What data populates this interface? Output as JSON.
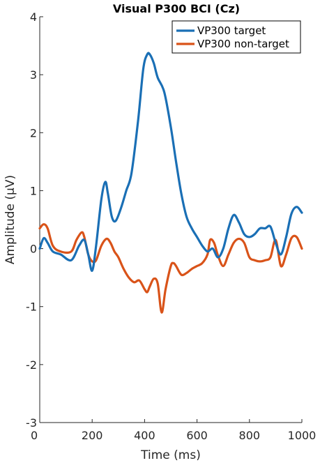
{
  "chart_data": {
    "type": "line",
    "title": "Visual P300 BCI (Cz)",
    "xlabel": "Time (ms)",
    "ylabel": "Amplitude (μV)",
    "xlim": [
      0,
      1000
    ],
    "ylim": [
      -3,
      4
    ],
    "xticks": [
      0,
      200,
      400,
      600,
      800,
      1000
    ],
    "yticks": [
      -3,
      -2,
      -1,
      0,
      1,
      2,
      3,
      4
    ],
    "grid": false,
    "legend_position": "top-right",
    "series": [
      {
        "name": "VP300 target",
        "color": "#1a6fb5",
        "x": [
          0,
          15,
          30,
          50,
          80,
          120,
          150,
          170,
          185,
          200,
          215,
          235,
          250,
          260,
          275,
          290,
          310,
          330,
          350,
          375,
          395,
          410,
          420,
          435,
          450,
          475,
          500,
          520,
          540,
          560,
          580,
          600,
          620,
          640,
          660,
          680,
          700,
          720,
          740,
          760,
          780,
          800,
          820,
          840,
          860,
          880,
          900,
          920,
          940,
          960,
          980,
          1000
        ],
        "y": [
          0.0,
          0.18,
          0.1,
          -0.05,
          -0.1,
          -0.2,
          0.05,
          0.15,
          -0.1,
          -0.38,
          0.05,
          0.85,
          1.15,
          0.95,
          0.55,
          0.48,
          0.7,
          1.0,
          1.3,
          2.2,
          3.1,
          3.35,
          3.35,
          3.2,
          2.95,
          2.7,
          2.1,
          1.5,
          0.95,
          0.55,
          0.35,
          0.2,
          0.05,
          -0.05,
          0.0,
          -0.15,
          0.0,
          0.35,
          0.58,
          0.45,
          0.25,
          0.2,
          0.25,
          0.35,
          0.35,
          0.38,
          0.1,
          -0.1,
          0.2,
          0.6,
          0.72,
          0.62
        ]
      },
      {
        "name": "VP300 non-target",
        "color": "#d95319",
        "x": [
          0,
          15,
          30,
          50,
          80,
          120,
          140,
          160,
          170,
          185,
          200,
          215,
          235,
          255,
          270,
          285,
          300,
          320,
          340,
          360,
          380,
          400,
          410,
          420,
          435,
          450,
          465,
          480,
          500,
          510,
          520,
          540,
          560,
          580,
          600,
          620,
          640,
          650,
          665,
          680,
          700,
          720,
          740,
          760,
          780,
          800,
          820,
          840,
          860,
          880,
          900,
          920,
          940,
          960,
          980,
          1000
        ],
        "y": [
          0.35,
          0.42,
          0.35,
          0.05,
          -0.05,
          -0.05,
          0.15,
          0.28,
          0.2,
          -0.1,
          -0.22,
          -0.2,
          0.05,
          0.17,
          0.1,
          -0.05,
          -0.15,
          -0.35,
          -0.5,
          -0.58,
          -0.55,
          -0.7,
          -0.75,
          -0.65,
          -0.52,
          -0.6,
          -1.1,
          -0.7,
          -0.3,
          -0.25,
          -0.3,
          -0.45,
          -0.42,
          -0.35,
          -0.3,
          -0.25,
          -0.1,
          0.15,
          0.1,
          -0.12,
          -0.3,
          -0.1,
          0.1,
          0.17,
          0.1,
          -0.15,
          -0.2,
          -0.22,
          -0.2,
          -0.15,
          0.15,
          -0.3,
          -0.1,
          0.18,
          0.2,
          0.0
        ]
      }
    ]
  }
}
